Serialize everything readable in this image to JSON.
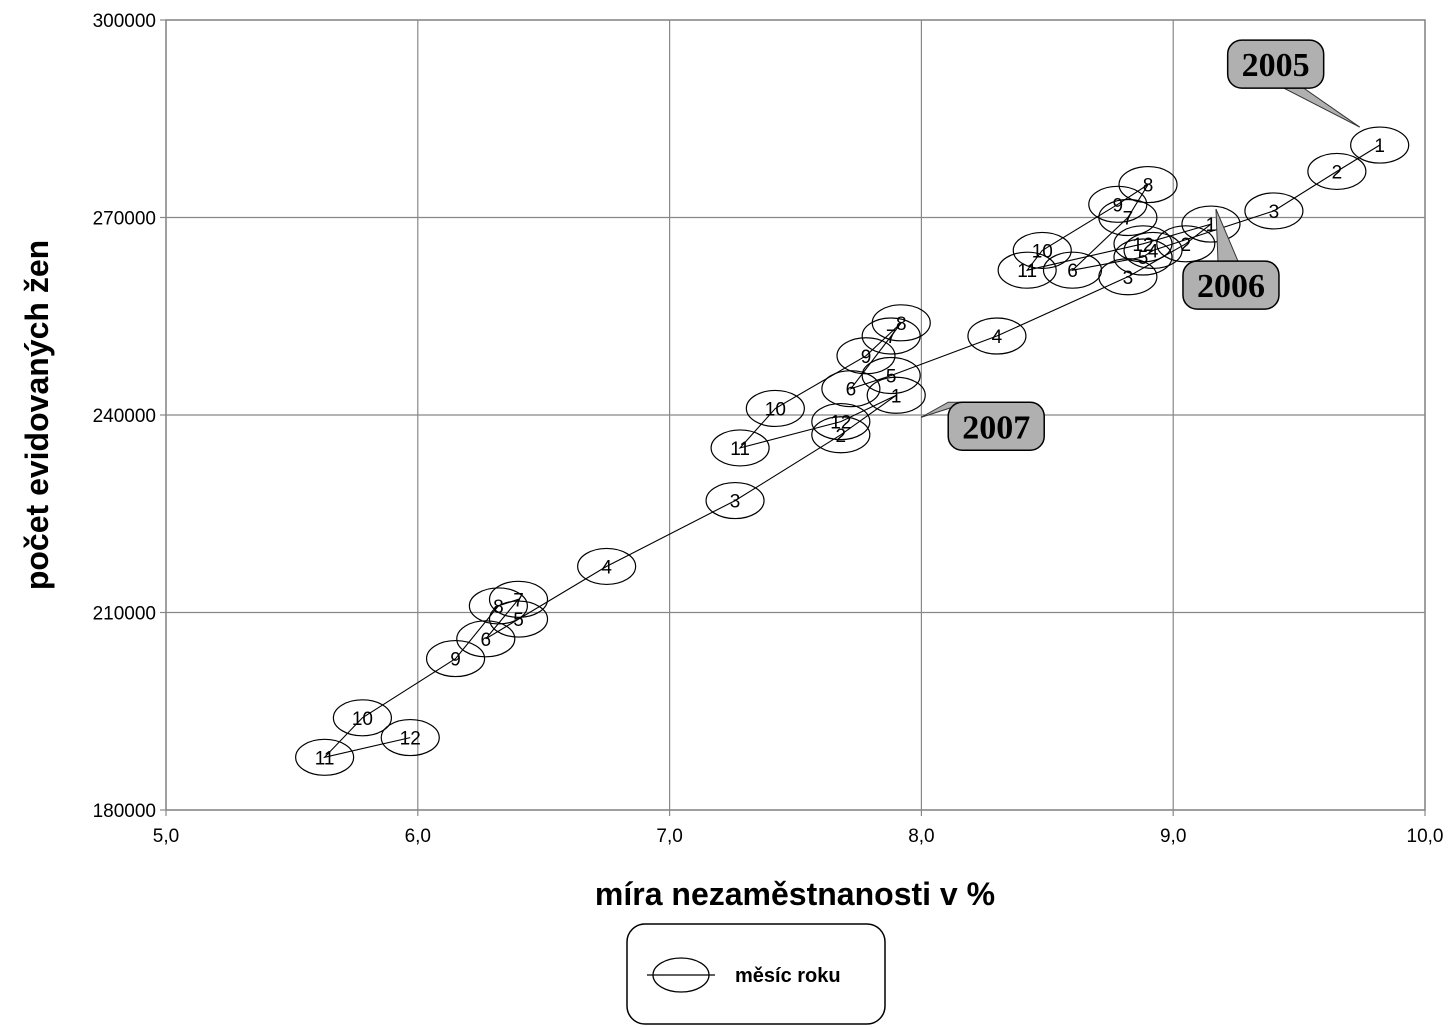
{
  "chart_data": {
    "type": "scatter",
    "xlabel": "míra nezaměstnanosti v %",
    "ylabel": "počet evidovaných žen",
    "xlim": [
      5.0,
      10.0
    ],
    "ylim": [
      180000,
      300000
    ],
    "x_ticks": [
      "5,0",
      "6,0",
      "7,0",
      "8,0",
      "9,0",
      "10,0"
    ],
    "y_ticks": [
      "180000",
      "210000",
      "240000",
      "270000",
      "300000"
    ],
    "grid": true,
    "legend_position": "bottom-center",
    "series": [
      {
        "name": "měsíc roku",
        "years": [
          {
            "year": "2005",
            "points": [
              {
                "month": "1",
                "x": 9.82,
                "y": 281000
              },
              {
                "month": "2",
                "x": 9.65,
                "y": 277000
              },
              {
                "month": "3",
                "x": 9.4,
                "y": 271000
              },
              {
                "month": "4",
                "x": 8.92,
                "y": 265000
              },
              {
                "month": "5",
                "x": 8.88,
                "y": 264000
              },
              {
                "month": "6",
                "x": 8.6,
                "y": 262000
              },
              {
                "month": "7",
                "x": 8.82,
                "y": 270000
              },
              {
                "month": "8",
                "x": 8.9,
                "y": 275000
              },
              {
                "month": "9",
                "x": 8.78,
                "y": 272000
              },
              {
                "month": "10",
                "x": 8.48,
                "y": 265000
              },
              {
                "month": "11",
                "x": 8.42,
                "y": 262000
              },
              {
                "month": "12",
                "x": 8.88,
                "y": 266000
              }
            ]
          },
          {
            "year": "2006",
            "points": [
              {
                "month": "1",
                "x": 9.15,
                "y": 269000
              },
              {
                "month": "2",
                "x": 9.05,
                "y": 266000
              },
              {
                "month": "3",
                "x": 8.82,
                "y": 261000
              },
              {
                "month": "4",
                "x": 8.3,
                "y": 252000
              },
              {
                "month": "5",
                "x": 7.88,
                "y": 246000
              },
              {
                "month": "6",
                "x": 7.72,
                "y": 244000
              },
              {
                "month": "7",
                "x": 7.88,
                "y": 252000
              },
              {
                "month": "8",
                "x": 7.92,
                "y": 254000
              },
              {
                "month": "9",
                "x": 7.78,
                "y": 249000
              },
              {
                "month": "10",
                "x": 7.42,
                "y": 241000
              },
              {
                "month": "11",
                "x": 7.28,
                "y": 235000
              },
              {
                "month": "12",
                "x": 7.68,
                "y": 239000
              }
            ]
          },
          {
            "year": "2007",
            "points": [
              {
                "month": "1",
                "x": 7.9,
                "y": 243000
              },
              {
                "month": "2",
                "x": 7.68,
                "y": 237000
              },
              {
                "month": "3",
                "x": 7.26,
                "y": 227000
              },
              {
                "month": "4",
                "x": 6.75,
                "y": 217000
              },
              {
                "month": "5",
                "x": 6.4,
                "y": 209000
              },
              {
                "month": "6",
                "x": 6.27,
                "y": 206000
              },
              {
                "month": "7",
                "x": 6.4,
                "y": 212000
              },
              {
                "month": "8",
                "x": 6.32,
                "y": 211000
              },
              {
                "month": "9",
                "x": 6.15,
                "y": 203000
              },
              {
                "month": "10",
                "x": 5.78,
                "y": 194000
              },
              {
                "month": "11",
                "x": 5.63,
                "y": 188000
              },
              {
                "month": "12",
                "x": 5.97,
                "y": 191000
              }
            ]
          }
        ]
      }
    ],
    "annotations": [
      {
        "text": "2005",
        "year_index": 0
      },
      {
        "text": "2006",
        "year_index": 1
      },
      {
        "text": "2007",
        "year_index": 2
      }
    ]
  },
  "legend": {
    "label": "měsíc roku"
  },
  "colors": {
    "grid": "#888888",
    "annotation_fill": "#b0b0b0",
    "line": "#000000"
  }
}
